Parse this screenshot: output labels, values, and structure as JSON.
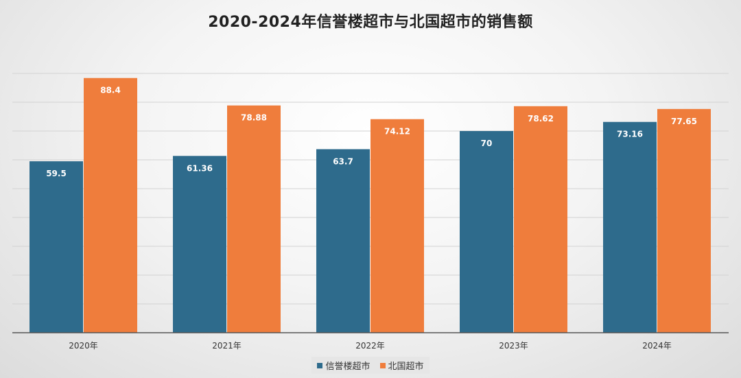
{
  "chart_data": {
    "type": "bar",
    "title": "2020-2024年信誉楼超市与北国超市的销售额",
    "categories": [
      "2020年",
      "2021年",
      "2022年",
      "2023年",
      "2024年"
    ],
    "series": [
      {
        "name": "信誉楼超市",
        "values": [
          59.5,
          61.36,
          63.7,
          70,
          73.16
        ],
        "labels": [
          "59.5",
          "61.36",
          "63.7",
          "70",
          "73.16"
        ],
        "color": "#2e6b8c"
      },
      {
        "name": "北国超市",
        "values": [
          88.4,
          78.88,
          74.12,
          78.62,
          77.65
        ],
        "labels": [
          "88.4",
          "78.88",
          "74.12",
          "78.62",
          "77.65"
        ],
        "color": "#ef7d3c"
      }
    ],
    "xlabel": "",
    "ylabel": "",
    "ylim": [
      0,
      90
    ],
    "grid": true,
    "legend_position": "bottom"
  }
}
